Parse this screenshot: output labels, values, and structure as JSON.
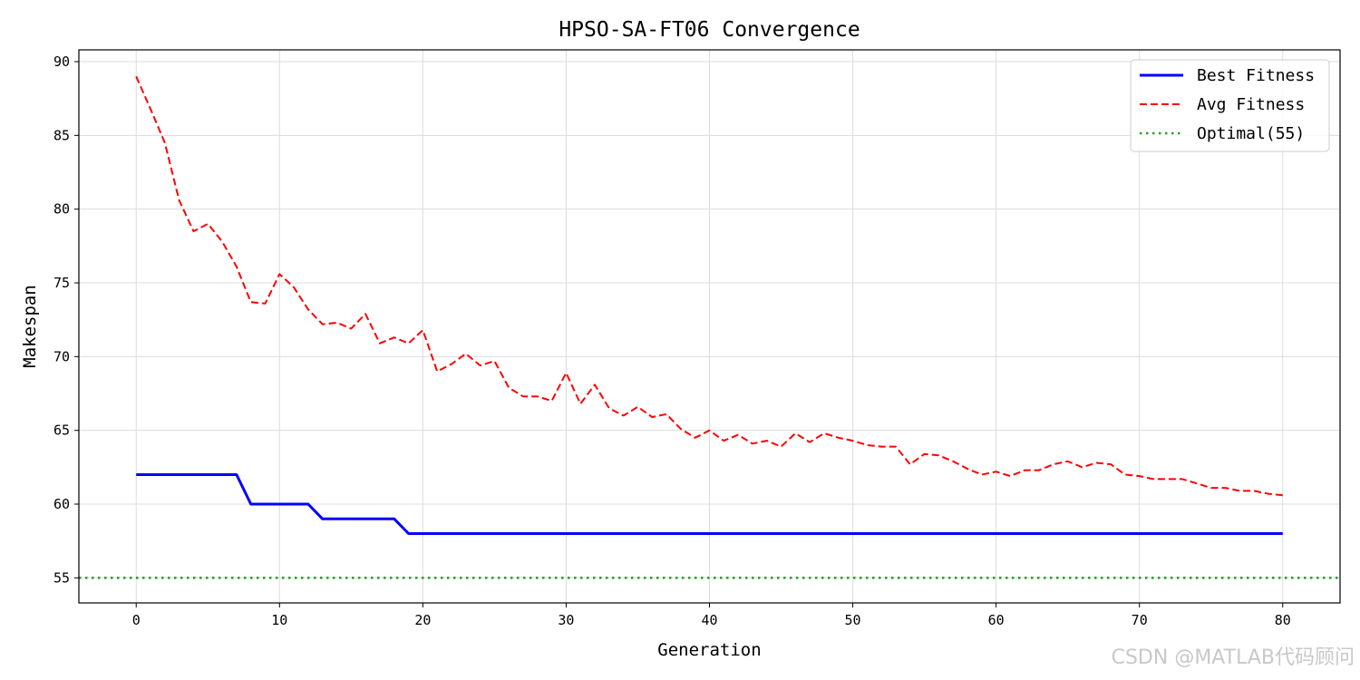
{
  "chart_data": {
    "type": "line",
    "title": "HPSO-SA-FT06 Convergence",
    "xlabel": "Generation",
    "ylabel": "Makespan",
    "xlim": [
      -4,
      84
    ],
    "ylim": [
      53.3,
      90.8
    ],
    "xticks": [
      0,
      10,
      20,
      30,
      40,
      50,
      60,
      70,
      80
    ],
    "yticks": [
      55,
      60,
      65,
      70,
      75,
      80,
      85,
      90
    ],
    "grid": true,
    "legend_position": "top-right",
    "series": [
      {
        "name": "Best Fitness",
        "color": "#0000ff",
        "style": "solid",
        "x": [
          0,
          1,
          2,
          3,
          4,
          5,
          6,
          7,
          8,
          9,
          10,
          11,
          12,
          13,
          14,
          15,
          16,
          17,
          18,
          19,
          20,
          21,
          22,
          23,
          24,
          25,
          26,
          27,
          28,
          29,
          30,
          31,
          32,
          33,
          34,
          35,
          36,
          37,
          38,
          39,
          40,
          41,
          42,
          43,
          44,
          45,
          46,
          47,
          48,
          49,
          50,
          51,
          52,
          53,
          54,
          55,
          56,
          57,
          58,
          59,
          60,
          61,
          62,
          63,
          64,
          65,
          66,
          67,
          68,
          69,
          70,
          71,
          72,
          73,
          74,
          75,
          76,
          77,
          78,
          79,
          80
        ],
        "y": [
          62,
          62,
          62,
          62,
          62,
          62,
          62,
          62,
          60,
          60,
          60,
          60,
          60,
          59,
          59,
          59,
          59,
          59,
          59,
          58,
          58,
          58,
          58,
          58,
          58,
          58,
          58,
          58,
          58,
          58,
          58,
          58,
          58,
          58,
          58,
          58,
          58,
          58,
          58,
          58,
          58,
          58,
          58,
          58,
          58,
          58,
          58,
          58,
          58,
          58,
          58,
          58,
          58,
          58,
          58,
          58,
          58,
          58,
          58,
          58,
          58,
          58,
          58,
          58,
          58,
          58,
          58,
          58,
          58,
          58,
          58,
          58,
          58,
          58,
          58,
          58,
          58,
          58,
          58,
          58,
          58
        ]
      },
      {
        "name": "Avg Fitness",
        "color": "#ff0000",
        "style": "dashed",
        "x": [
          0,
          1,
          2,
          3,
          4,
          5,
          6,
          7,
          8,
          9,
          10,
          11,
          12,
          13,
          14,
          15,
          16,
          17,
          18,
          19,
          20,
          21,
          22,
          23,
          24,
          25,
          26,
          27,
          28,
          29,
          30,
          31,
          32,
          33,
          34,
          35,
          36,
          37,
          38,
          39,
          40,
          41,
          42,
          43,
          44,
          45,
          46,
          47,
          48,
          49,
          50,
          51,
          52,
          53,
          54,
          55,
          56,
          57,
          58,
          59,
          60,
          61,
          62,
          63,
          64,
          65,
          66,
          67,
          68,
          69,
          70,
          71,
          72,
          73,
          74,
          75,
          76,
          77,
          78,
          79,
          80
        ],
        "y": [
          89.0,
          86.8,
          84.5,
          80.6,
          78.5,
          79.0,
          77.8,
          76.1,
          73.7,
          73.6,
          75.6,
          74.7,
          73.2,
          72.2,
          72.3,
          71.9,
          72.9,
          70.9,
          71.3,
          70.9,
          71.8,
          69.0,
          69.5,
          70.2,
          69.4,
          69.7,
          67.9,
          67.3,
          67.3,
          67.0,
          68.9,
          66.8,
          68.1,
          66.5,
          66.0,
          66.6,
          65.9,
          66.1,
          65.1,
          64.5,
          65.0,
          64.3,
          64.7,
          64.1,
          64.3,
          63.9,
          64.8,
          64.2,
          64.8,
          64.5,
          64.3,
          64.0,
          63.9,
          63.9,
          62.7,
          63.4,
          63.3,
          62.9,
          62.4,
          62.0,
          62.2,
          61.9,
          62.3,
          62.3,
          62.7,
          62.9,
          62.5,
          62.8,
          62.7,
          62.0,
          61.9,
          61.7,
          61.7,
          61.7,
          61.4,
          61.1,
          61.1,
          60.9,
          60.9,
          60.7,
          60.6
        ]
      },
      {
        "name": "Optimal(55)",
        "color": "#2ca02c",
        "style": "dotted",
        "hline": 55
      }
    ]
  },
  "watermark": "CSDN @MATLAB代码顾问"
}
